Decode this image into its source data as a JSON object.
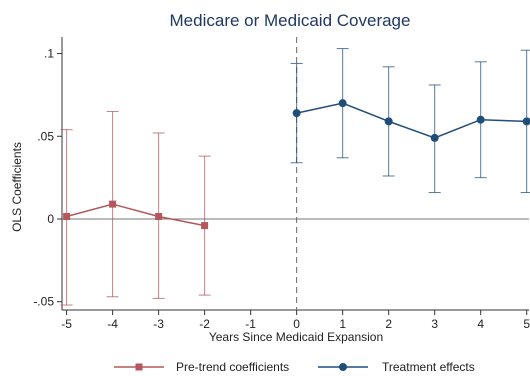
{
  "chart_data": {
    "type": "line",
    "title": "Medicare or Medicaid Coverage",
    "xlabel": "Years Since Medicaid Expansion",
    "ylabel": "OLS Coefficients",
    "x_ticks": [
      -5,
      -4,
      -3,
      -2,
      -1,
      0,
      1,
      2,
      3,
      4,
      5
    ],
    "x_tick_labels": [
      "-5",
      "-4",
      "-3",
      "-2",
      "-1",
      "0",
      "1",
      "2",
      "3",
      "4",
      "5"
    ],
    "y_ticks": [
      -0.05,
      0,
      0.05,
      0.1
    ],
    "y_tick_labels": [
      "-.05",
      "0",
      ".05",
      ".1"
    ],
    "xlim": [
      -5.1,
      5.05
    ],
    "ylim": [
      -0.055,
      0.11
    ],
    "reference_line_y": 0,
    "reference_line_x": 0,
    "legend_position": "bottom",
    "series": [
      {
        "name": "Pre-trend coefficients",
        "color": "#b5575a",
        "marker": "square",
        "x": [
          -5,
          -4,
          -3,
          -2
        ],
        "y": [
          0.0015,
          0.009,
          0.0015,
          -0.004
        ],
        "ci_low": [
          -0.052,
          -0.047,
          -0.048,
          -0.046
        ],
        "ci_high": [
          0.054,
          0.065,
          0.052,
          0.038
        ]
      },
      {
        "name": "Treatment effects",
        "color": "#1f4e79",
        "marker": "circle",
        "x": [
          0,
          1,
          2,
          3,
          4,
          5
        ],
        "y": [
          0.064,
          0.07,
          0.059,
          0.049,
          0.06,
          0.059
        ],
        "ci_low": [
          0.034,
          0.037,
          0.026,
          0.016,
          0.025,
          0.016
        ],
        "ci_high": [
          0.094,
          0.103,
          0.092,
          0.081,
          0.095,
          0.102
        ]
      }
    ]
  }
}
